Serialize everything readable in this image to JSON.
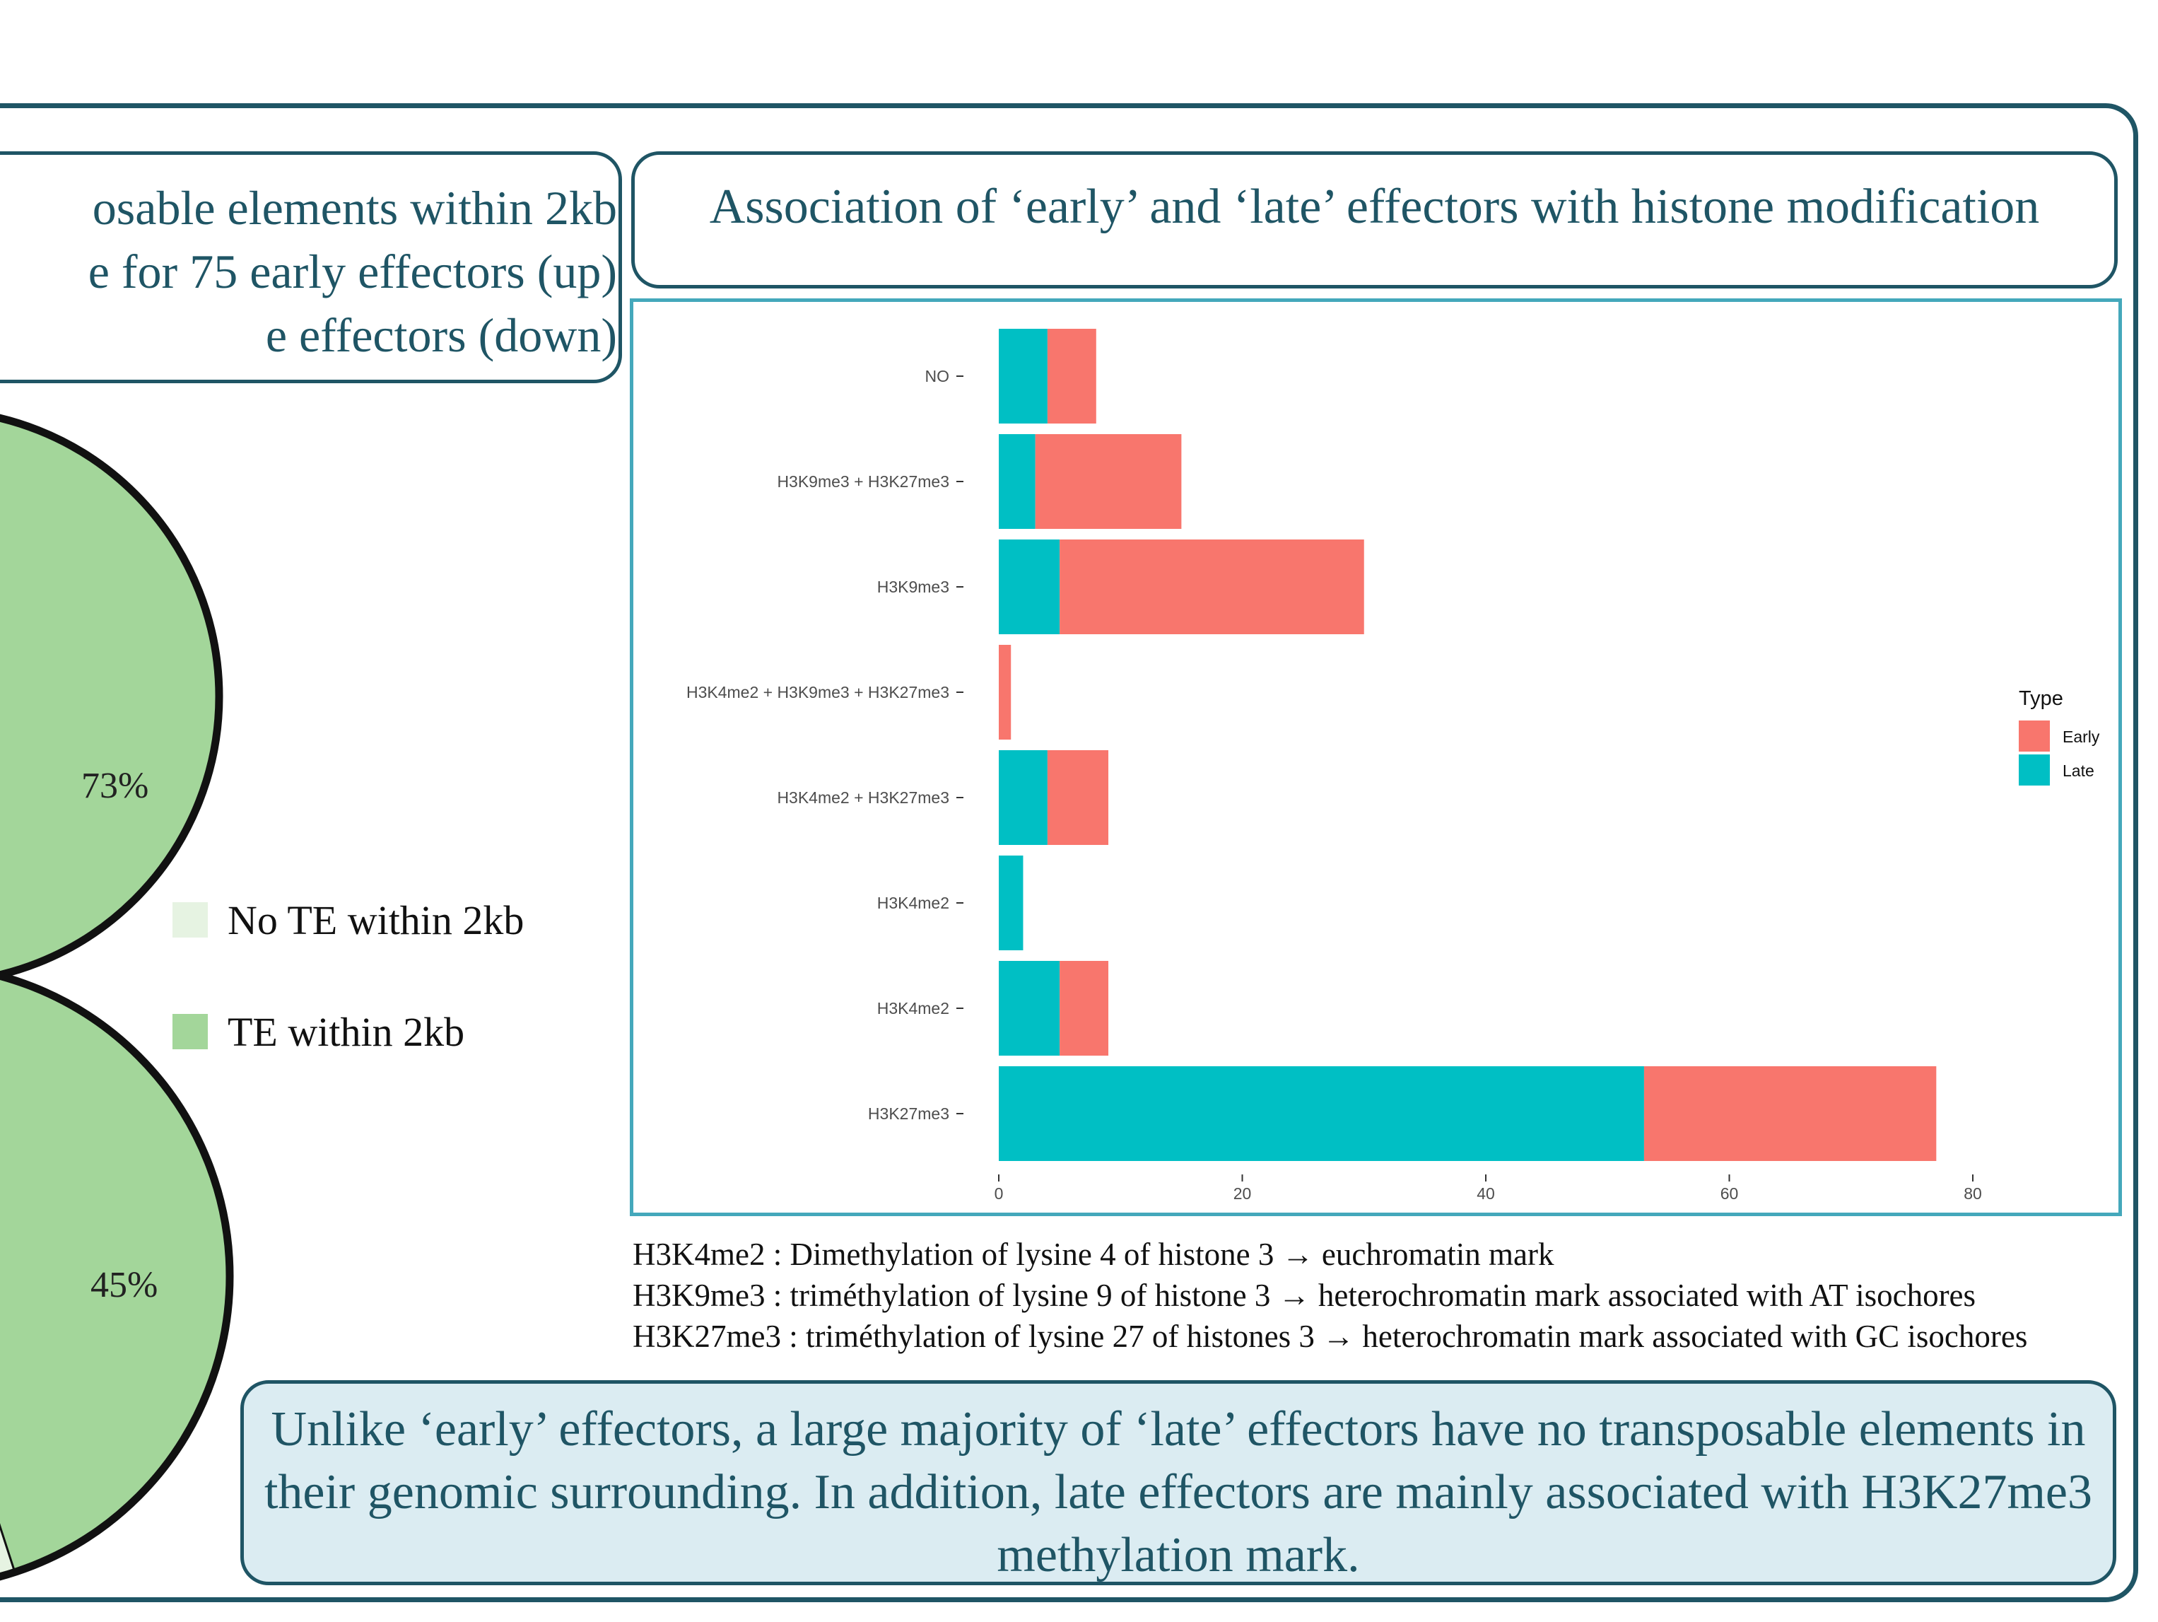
{
  "left_title": {
    "lines": [
      "osable elements within 2kb",
      "e for 75 early effectors (up)",
      "e effectors (down)"
    ]
  },
  "right_title": "Association of ‘early’ and ‘late’ effectors with histone modification",
  "pies": [
    {
      "label": "73%",
      "te_within_fraction": 0.73
    },
    {
      "label": "45%",
      "te_within_fraction": 0.45
    }
  ],
  "pie_legend": [
    {
      "label": "No TE within 2kb",
      "color": "#e6f3e2"
    },
    {
      "label": "TE within 2kb",
      "color": "#a3d69a"
    }
  ],
  "chart_data": {
    "type": "bar",
    "orientation": "horizontal",
    "stacked": true,
    "categories": [
      "NO",
      "H3K9me3  + H3K27me3",
      "H3K9me3",
      "H3K4me2  + H3K9me3   + H3K27me3",
      "H3K4me2  + H3K27me3",
      "H3K4me2",
      "H3K4me2",
      "H3K27me3"
    ],
    "series": [
      {
        "name": "Late",
        "color": "#00bfc4",
        "values": [
          4,
          3,
          5,
          0,
          4,
          2,
          5,
          53
        ]
      },
      {
        "name": "Early",
        "color": "#f8766d",
        "values": [
          4,
          12,
          25,
          1,
          5,
          0,
          4,
          24
        ]
      }
    ],
    "xlim": [
      0,
      80
    ],
    "xticks": [
      "0",
      "20",
      "40",
      "60",
      "80"
    ],
    "legend": {
      "title": "Type",
      "position": "right",
      "entries": [
        "Early",
        "Late"
      ]
    },
    "grid": false
  },
  "notes": [
    "H3K4me2 : Dimethylation of lysine 4 of histone 3 → euchromatin mark",
    "H3K9me3 : triméthylation of lysine 9 of histone 3 → heterochromatin mark associated with AT isochores",
    "H3K27me3 : triméthylation of lysine 27 of histones 3 → heterochromatin mark associated with GC isochores"
  ],
  "conclusion": "Unlike ‘early’ effectors, a large majority of ‘late’ effectors have no transposable elements in their genomic surrounding. In addition, late effectors are mainly associated with H3K27me3 methylation mark."
}
